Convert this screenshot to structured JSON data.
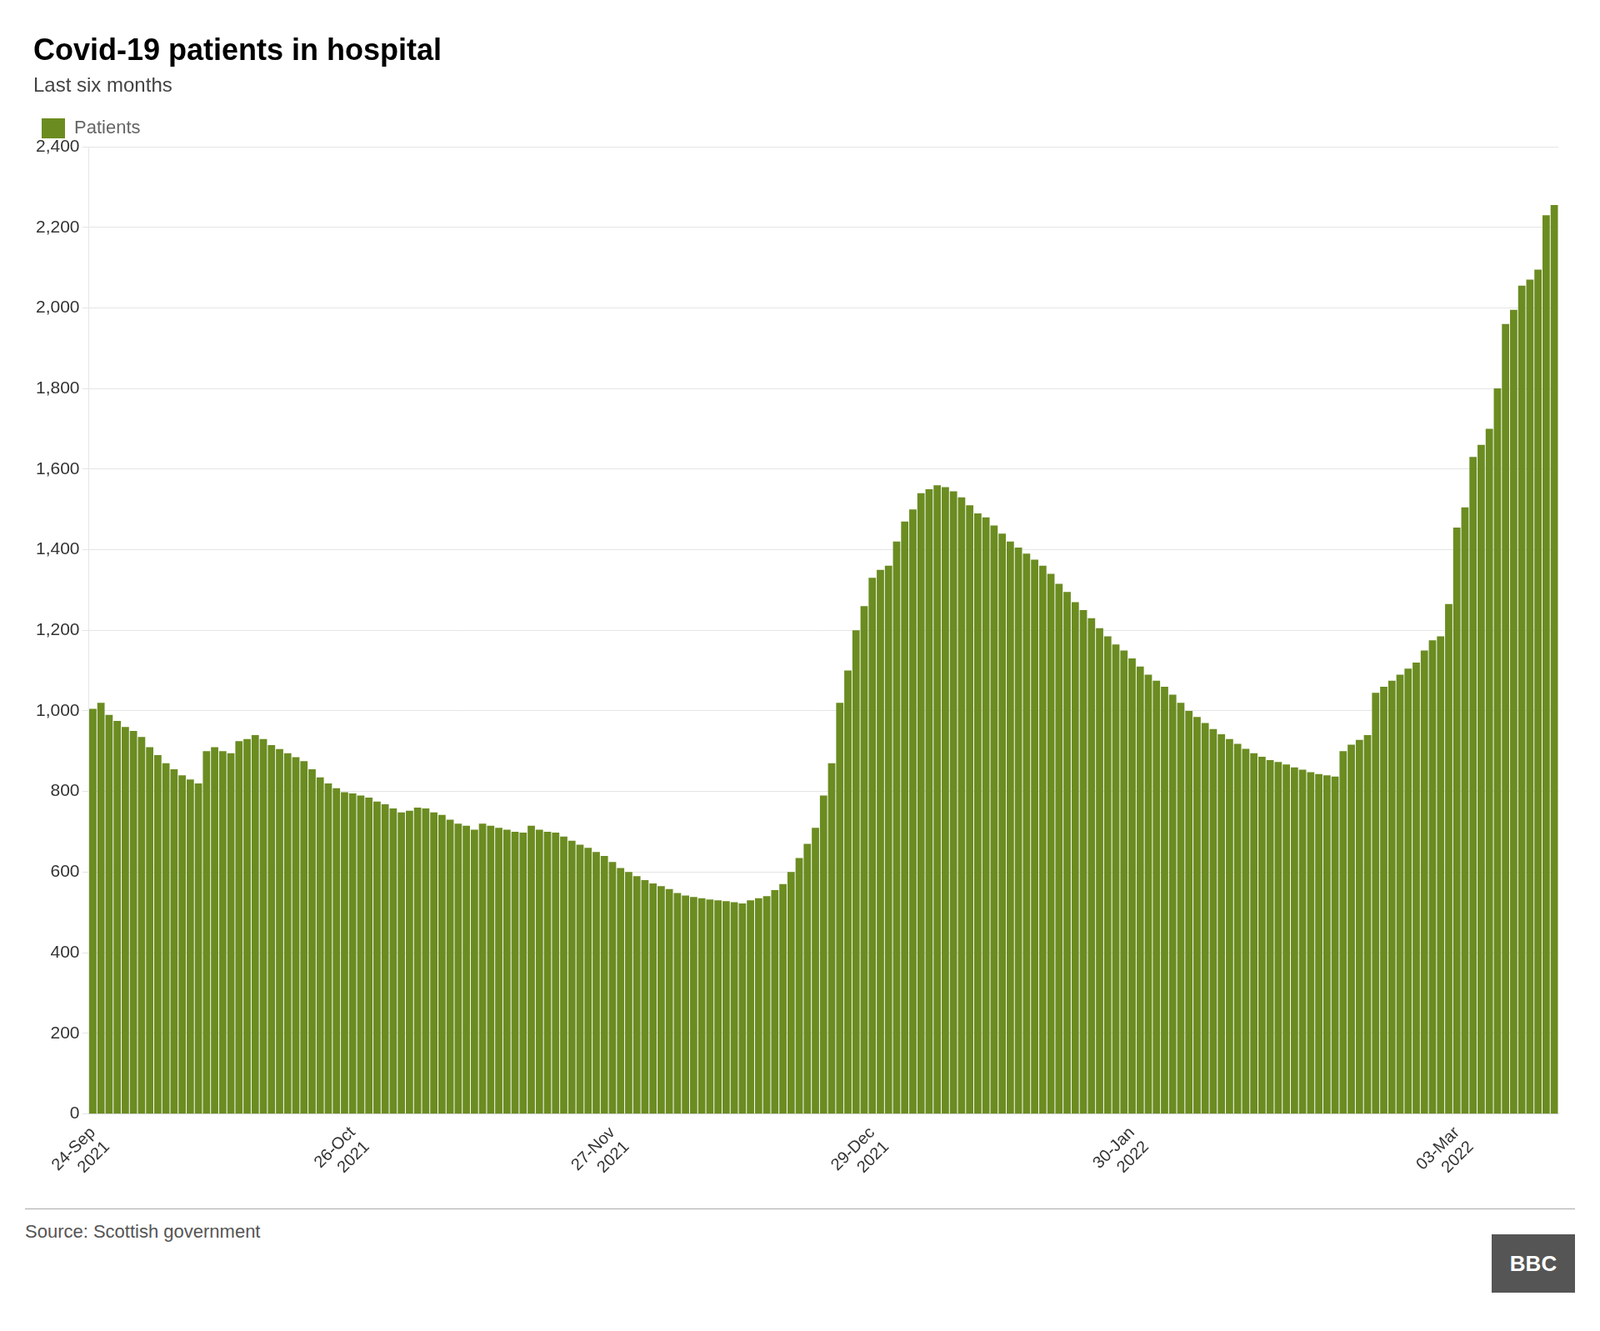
{
  "chart_data": {
    "type": "bar",
    "title": "Covid-19 patients in hospital",
    "subtitle": "Last six months",
    "annotations": [
      "Source: Scottish government",
      "BBC"
    ],
    "legend": "upper left",
    "grid": true,
    "ylim": [
      0,
      2400
    ],
    "yticks": [
      0,
      200,
      400,
      600,
      800,
      {
        "value": 1000,
        "label": "1,000"
      },
      {
        "value": 1200,
        "label": "1,200"
      },
      {
        "value": 1400,
        "label": "1,400"
      },
      {
        "value": 1600,
        "label": "1,600"
      },
      {
        "value": 1800,
        "label": "1,800"
      },
      {
        "value": 2000,
        "label": "2,000"
      },
      {
        "value": 2200,
        "label": "2,200"
      },
      {
        "value": 2400,
        "label": "2,400"
      }
    ],
    "categories": [
      "24-Sep\n2021",
      null,
      null,
      null,
      null,
      null,
      null,
      null,
      null,
      null,
      null,
      null,
      null,
      null,
      null,
      null,
      null,
      null,
      null,
      null,
      null,
      null,
      null,
      null,
      null,
      null,
      null,
      null,
      null,
      null,
      null,
      null,
      "26-Oct\n2021",
      null,
      null,
      null,
      null,
      null,
      null,
      null,
      null,
      null,
      null,
      null,
      null,
      null,
      null,
      null,
      null,
      null,
      null,
      null,
      null,
      null,
      null,
      null,
      null,
      null,
      null,
      null,
      null,
      null,
      null,
      null,
      "27-Nov\n2021",
      null,
      null,
      null,
      null,
      null,
      null,
      null,
      null,
      null,
      null,
      null,
      null,
      null,
      null,
      null,
      null,
      null,
      null,
      null,
      null,
      null,
      null,
      null,
      null,
      null,
      null,
      null,
      null,
      null,
      null,
      null,
      "29-Dec\n2021",
      null,
      null,
      null,
      null,
      null,
      null,
      null,
      null,
      null,
      null,
      null,
      null,
      null,
      null,
      null,
      null,
      null,
      null,
      null,
      null,
      null,
      null,
      null,
      null,
      null,
      null,
      null,
      null,
      null,
      null,
      null,
      "30-Jan\n2022",
      null,
      null,
      null,
      null,
      null,
      null,
      null,
      null,
      null,
      null,
      null,
      null,
      null,
      null,
      null,
      null,
      null,
      null,
      null,
      null,
      null,
      null,
      null,
      null,
      null,
      null,
      null,
      null,
      null,
      null,
      null,
      null,
      null,
      null,
      null,
      null,
      null,
      null,
      null,
      "03-Mar\n2022",
      null,
      null,
      null,
      null,
      null,
      null,
      null,
      null,
      null,
      null,
      null,
      null
    ],
    "series": [
      {
        "name": "Patients",
        "color": "#6b8c21",
        "values": [
          1005,
          1020,
          990,
          975,
          960,
          950,
          935,
          910,
          890,
          870,
          855,
          840,
          830,
          820,
          900,
          910,
          900,
          895,
          925,
          930,
          940,
          930,
          915,
          905,
          895,
          885,
          875,
          855,
          835,
          820,
          808,
          798,
          795,
          790,
          785,
          775,
          768,
          758,
          748,
          752,
          760,
          758,
          748,
          742,
          730,
          720,
          715,
          705,
          720,
          715,
          710,
          705,
          700,
          698,
          715,
          705,
          700,
          698,
          688,
          678,
          668,
          660,
          650,
          640,
          625,
          610,
          600,
          590,
          580,
          572,
          565,
          558,
          548,
          542,
          538,
          535,
          532,
          530,
          528,
          525,
          522,
          530,
          535,
          540,
          555,
          570,
          600,
          635,
          670,
          710,
          790,
          870,
          1020,
          1100,
          1200,
          1260,
          1330,
          1350,
          1360,
          1420,
          1470,
          1500,
          1540,
          1550,
          1560,
          1555,
          1545,
          1530,
          1510,
          1490,
          1480,
          1460,
          1440,
          1420,
          1405,
          1390,
          1375,
          1360,
          1340,
          1315,
          1295,
          1270,
          1250,
          1230,
          1205,
          1185,
          1165,
          1150,
          1130,
          1110,
          1090,
          1075,
          1060,
          1040,
          1020,
          1000,
          985,
          970,
          955,
          942,
          930,
          918,
          906,
          895,
          886,
          878,
          873,
          867,
          860,
          854,
          848,
          843,
          840,
          837,
          900,
          916,
          928,
          940,
          1045,
          1060,
          1075,
          1090,
          1105,
          1120,
          1150,
          1175,
          1185,
          1265,
          1455,
          1505,
          1630,
          1660,
          1700,
          1800,
          1960,
          1995,
          2055,
          2070,
          2095,
          2230,
          2255
        ]
      }
    ]
  }
}
